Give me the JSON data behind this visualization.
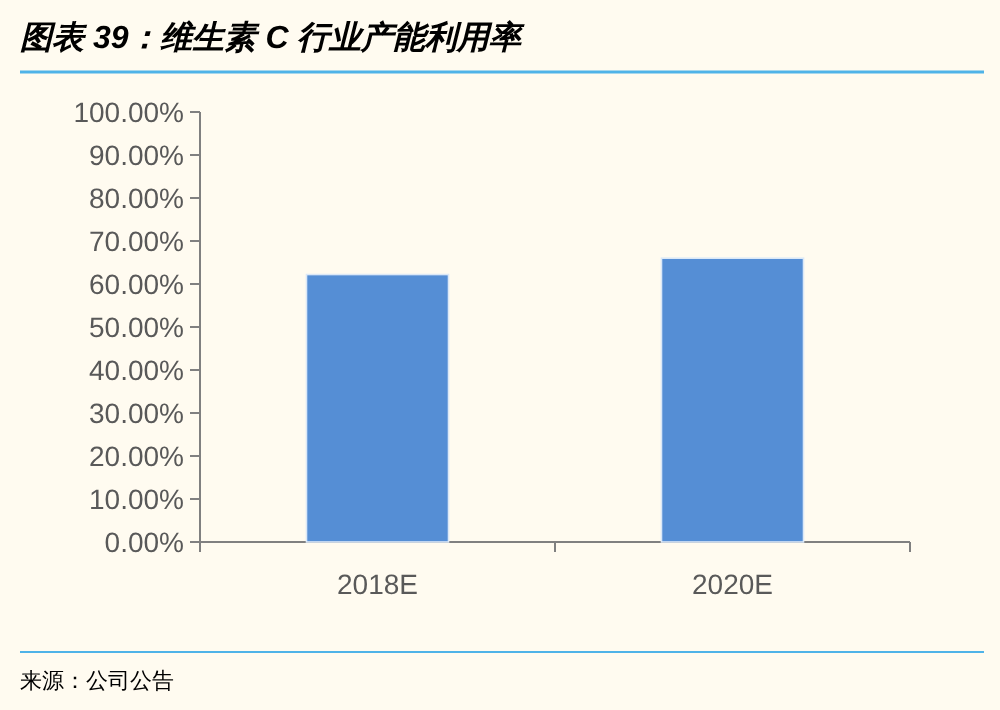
{
  "chart_data": {
    "type": "bar",
    "title": "图表 39：维生素 C 行业产能利用率",
    "categories": [
      "2018E",
      "2020E"
    ],
    "values": [
      62.2,
      66.0
    ],
    "color": "#558ed5",
    "ylim": [
      0,
      100
    ],
    "yticks": [
      {
        "value": 0,
        "label": "0.00%"
      },
      {
        "value": 10,
        "label": "10.00%"
      },
      {
        "value": 20,
        "label": "20.00%"
      },
      {
        "value": 30,
        "label": "30.00%"
      },
      {
        "value": 40,
        "label": "40.00%"
      },
      {
        "value": 50,
        "label": "50.00%"
      },
      {
        "value": 60,
        "label": "60.00%"
      },
      {
        "value": 70,
        "label": "70.00%"
      },
      {
        "value": 80,
        "label": "80.00%"
      },
      {
        "value": 90,
        "label": "90.00%"
      },
      {
        "value": 100,
        "label": "100.00%"
      }
    ],
    "annotations": [
      "来源：公司公告"
    ]
  }
}
